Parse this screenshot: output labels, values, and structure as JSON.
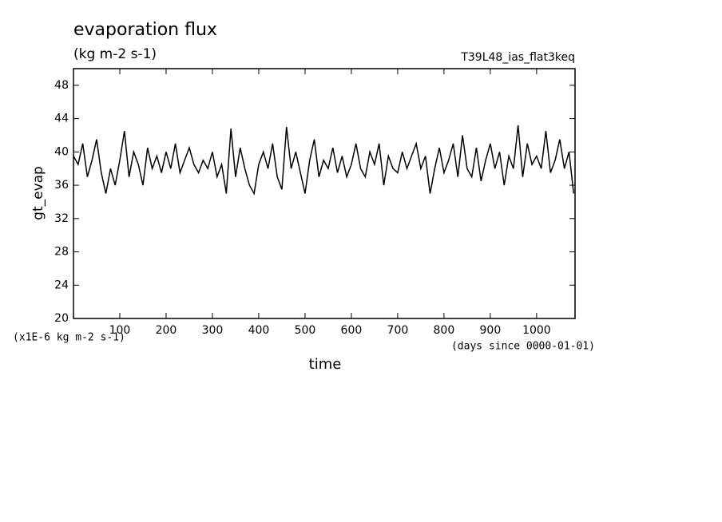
{
  "chart_data": {
    "type": "line",
    "title": "evaporation flux",
    "subtitle": "(kg m-2 s-1)",
    "annotation": "T39L48_ias_flat3keq",
    "y_label": "gt_evap",
    "x_label": "time",
    "y_unit": "(x1E-6 kg m-2 s-1)",
    "x_unit": "(days since 0000-01-01)",
    "xlim": [
      0,
      1083
    ],
    "ylim": [
      20,
      50
    ],
    "xticks": [
      100,
      200,
      300,
      400,
      500,
      600,
      700,
      800,
      900,
      1000
    ],
    "yticks": [
      20,
      24,
      28,
      32,
      36,
      40,
      44,
      48
    ],
    "x": [
      0,
      10,
      20,
      30,
      40,
      50,
      60,
      70,
      80,
      90,
      100,
      110,
      120,
      130,
      140,
      150,
      160,
      170,
      180,
      190,
      200,
      210,
      220,
      230,
      240,
      250,
      260,
      270,
      280,
      290,
      300,
      310,
      320,
      330,
      340,
      350,
      360,
      370,
      380,
      390,
      400,
      410,
      420,
      430,
      440,
      450,
      460,
      470,
      480,
      490,
      500,
      510,
      520,
      530,
      540,
      550,
      560,
      570,
      580,
      590,
      600,
      610,
      620,
      630,
      640,
      650,
      660,
      670,
      680,
      690,
      700,
      710,
      720,
      730,
      740,
      750,
      760,
      770,
      780,
      790,
      800,
      810,
      820,
      830,
      840,
      850,
      860,
      870,
      880,
      890,
      900,
      910,
      920,
      930,
      940,
      950,
      960,
      970,
      980,
      990,
      1000,
      1010,
      1020,
      1030,
      1040,
      1050,
      1060,
      1070,
      1080
    ],
    "series": [
      {
        "color": "#000000",
        "values": [
          39.5,
          38.5,
          41,
          37,
          39,
          41.5,
          37.5,
          35,
          38,
          36,
          39,
          42.5,
          37,
          40,
          38.5,
          36,
          40.5,
          38,
          39.5,
          37.5,
          40,
          38,
          41,
          37.5,
          39,
          40.5,
          38.5,
          37.5,
          39,
          38,
          40,
          37,
          38.5,
          35,
          42.8,
          37,
          40.5,
          38,
          36,
          35,
          38.5,
          40,
          38,
          41,
          37,
          35.5,
          43,
          38,
          40,
          37.5,
          35,
          39,
          41.5,
          37,
          39,
          38,
          40.5,
          37.5,
          39.5,
          37,
          38.5,
          41,
          38,
          37,
          40,
          38.5,
          41,
          36,
          39.5,
          38,
          37.5,
          40,
          38,
          39.5,
          41,
          38,
          39.5,
          35,
          38,
          40.5,
          37.5,
          39,
          41,
          37,
          42,
          38,
          37,
          40.5,
          36.5,
          39,
          41,
          38,
          40,
          36,
          39.5,
          38,
          43.2,
          37,
          41,
          38.5,
          39.5,
          38,
          42.5,
          37.5,
          39,
          41.5,
          38,
          40,
          35
        ]
      }
    ]
  }
}
